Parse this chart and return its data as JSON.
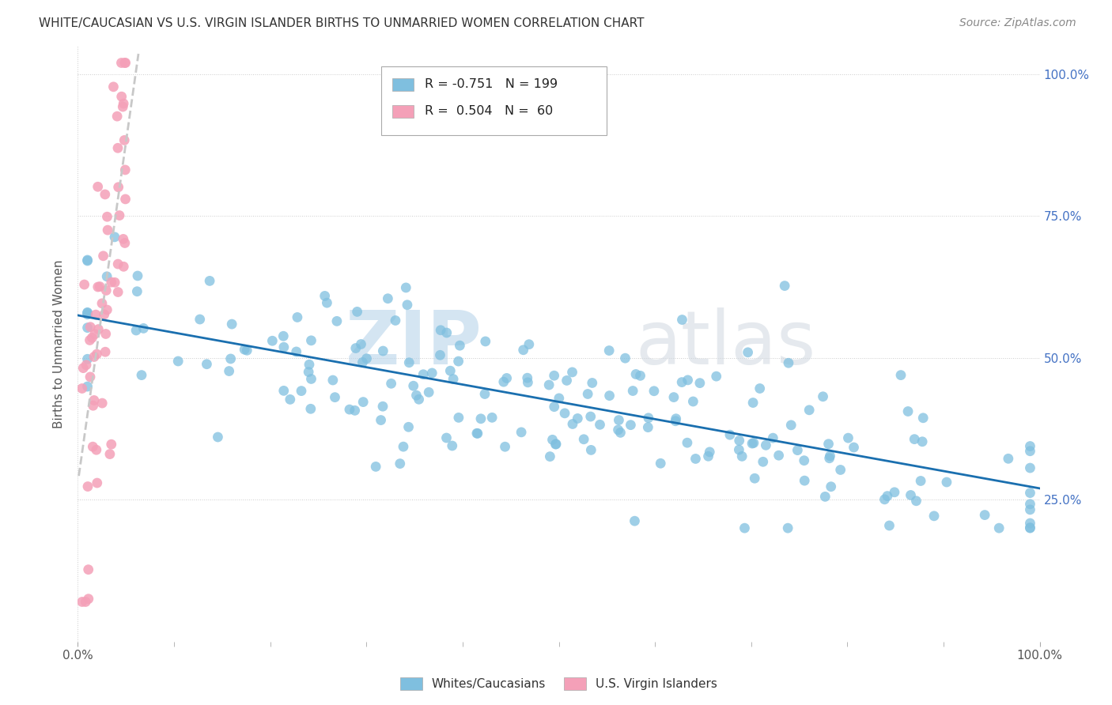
{
  "title": "WHITE/CAUCASIAN VS U.S. VIRGIN ISLANDER BIRTHS TO UNMARRIED WOMEN CORRELATION CHART",
  "source": "Source: ZipAtlas.com",
  "ylabel": "Births to Unmarried Women",
  "blue_color": "#7fbfdf",
  "pink_color": "#f4a0b8",
  "trendline_blue": "#1a6faf",
  "trendline_pink": "#c8c8c8",
  "watermark_zip": "ZIP",
  "watermark_atlas": "atlas",
  "blue_R": -0.751,
  "blue_N": 199,
  "pink_R": 0.504,
  "pink_N": 60,
  "xlim": [
    0.0,
    1.0
  ],
  "ylim": [
    0.0,
    1.05
  ],
  "right_ytick_vals": [
    0.25,
    0.5,
    0.75,
    1.0
  ],
  "right_ytick_labels": [
    "25.0%",
    "50.0%",
    "75.0%",
    "100.0%"
  ],
  "xtick_vals": [
    0.0,
    1.0
  ],
  "xtick_labels": [
    "0.0%",
    "100.0%"
  ]
}
